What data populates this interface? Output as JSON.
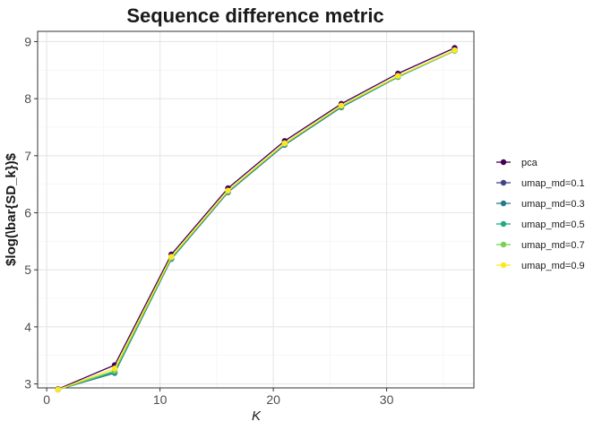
{
  "chart_data": {
    "type": "line",
    "title": "Sequence difference metric",
    "xlabel": "K",
    "ylabel": "$log(\\bar{SD_k})$",
    "xlim": [
      -0.8,
      37.7
    ],
    "ylim": [
      2.93,
      9.18
    ],
    "x_ticks": [
      0,
      10,
      20,
      30
    ],
    "y_ticks": [
      3,
      4,
      5,
      6,
      7,
      8,
      9
    ],
    "grid": true,
    "legend_position": "right",
    "x": [
      1,
      6,
      11,
      16,
      21,
      26,
      31,
      36
    ],
    "series": [
      {
        "name": "pca",
        "color": "#440154",
        "values": [
          2.91,
          3.33,
          5.27,
          6.43,
          7.26,
          7.91,
          8.44,
          8.89
        ]
      },
      {
        "name": "umap_md=0.1",
        "color": "#414487",
        "values": [
          2.9,
          3.2,
          5.19,
          6.36,
          7.19,
          7.85,
          8.38,
          8.84
        ]
      },
      {
        "name": "umap_md=0.3",
        "color": "#2A788E",
        "values": [
          2.9,
          3.19,
          5.19,
          6.36,
          7.19,
          7.85,
          8.38,
          8.84
        ]
      },
      {
        "name": "umap_md=0.5",
        "color": "#22A884",
        "values": [
          2.9,
          3.21,
          5.2,
          6.37,
          7.2,
          7.86,
          8.38,
          8.84
        ]
      },
      {
        "name": "umap_md=0.7",
        "color": "#7AD151",
        "values": [
          2.9,
          3.23,
          5.21,
          6.38,
          7.21,
          7.87,
          8.39,
          8.84
        ]
      },
      {
        "name": "umap_md=0.9",
        "color": "#FDE725",
        "values": [
          2.9,
          3.27,
          5.23,
          6.39,
          7.22,
          7.88,
          8.4,
          8.85
        ]
      }
    ]
  }
}
